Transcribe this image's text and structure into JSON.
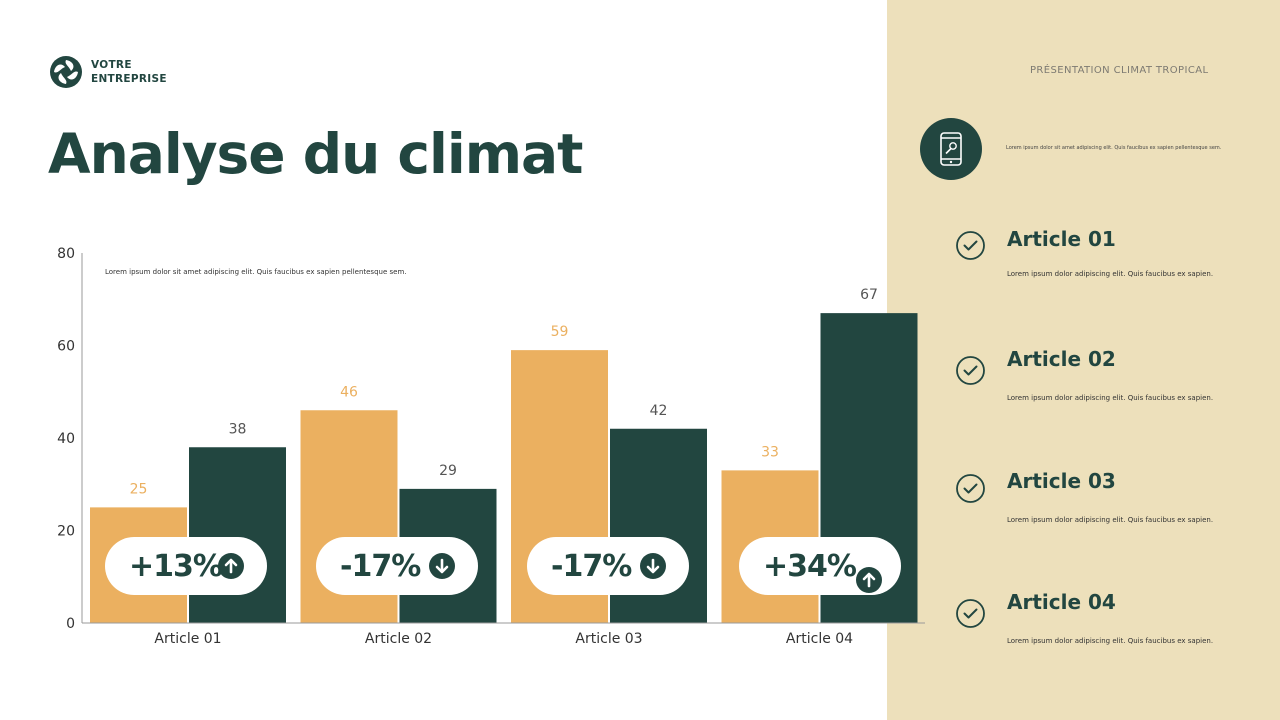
{
  "header": {
    "company_line1": "VOTRE",
    "company_line2": "ENTREPRISE",
    "presentation": "PRÉSENTATION CLIMAT TROPICAL",
    "title": "Analyse du climat"
  },
  "chart_note": "Lorem ipsum dolor sit amet adipiscing elit. Quis faucibus ex sapien pellentesque sem.",
  "chart_data": {
    "type": "bar",
    "categories": [
      "Article 01",
      "Article 02",
      "Article 03",
      "Article 04"
    ],
    "series": [
      {
        "values": [
          25,
          46,
          59,
          33
        ],
        "color": "#ebb060"
      },
      {
        "values": [
          38,
          29,
          42,
          67
        ],
        "color": "#224640"
      }
    ],
    "yticks": [
      0,
      20,
      40,
      60,
      80
    ],
    "ylim": [
      0,
      80
    ],
    "grid": false,
    "changes": [
      {
        "label": "+13%",
        "direction": "up"
      },
      {
        "label": "-17%",
        "direction": "down"
      },
      {
        "label": "-17%",
        "direction": "down"
      },
      {
        "label": "+34%",
        "direction": "up"
      }
    ]
  },
  "panel": {
    "note": "Lorem ipsum dolor sit amet adipiscing elit. Quis faucibus ex sapien pellentesque sem.",
    "articles": [
      {
        "title": "Article 01",
        "desc": "Lorem ipsum dolor adipiscing elit. Quis faucibus ex sapien."
      },
      {
        "title": "Article 02",
        "desc": "Lorem ipsum dolor adipiscing elit. Quis faucibus ex sapien."
      },
      {
        "title": "Article 03",
        "desc": "Lorem ipsum dolor adipiscing elit. Quis faucibus ex sapien."
      },
      {
        "title": "Article 04",
        "desc": "Lorem ipsum dolor adipiscing elit. Quis faucibus ex sapien."
      }
    ]
  },
  "colors": {
    "dark_green": "#224640",
    "orange": "#ebb060",
    "beige": "#ede0bb"
  }
}
